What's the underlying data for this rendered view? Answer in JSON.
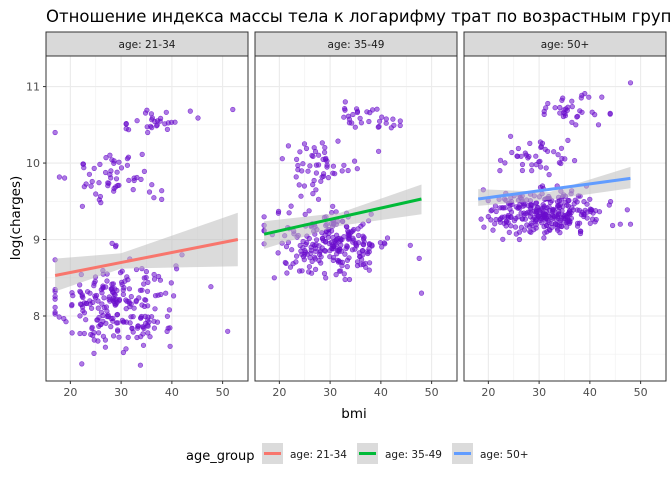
{
  "chart_data": {
    "type": "scatter",
    "title": "Отношение индекса массы тела к логарифму трат по возрастным группам",
    "xlabel": "bmi",
    "ylabel": "log(charges)",
    "xlim": [
      15.2,
      55.0
    ],
    "ylim": [
      7.15,
      11.4
    ],
    "x_ticks": [
      20,
      30,
      40,
      50
    ],
    "y_ticks": [
      8,
      9,
      10,
      11
    ],
    "grid": true,
    "legend_position": "bottom",
    "legend_title": "age_group",
    "point_color": "#6A0DCC",
    "ribbon_color": "#bdbdbd",
    "panels": [
      {
        "label": "age: 21-34",
        "series": "age: 21-34",
        "color": "#F8766D",
        "fit": {
          "x": [
            17,
            53
          ],
          "y": [
            8.53,
            9.0
          ]
        },
        "ribbon": {
          "x": [
            17,
            30,
            53
          ],
          "upper": [
            8.75,
            8.82,
            9.35
          ],
          "lower": [
            8.32,
            8.62,
            8.65
          ]
        },
        "clusters": [
          {
            "n": 230,
            "x_mean": 29,
            "x_sd": 5.8,
            "y_mean": 8.15,
            "y_sd": 0.3,
            "x_range": [
              17,
              53
            ],
            "y_range": [
              7.35,
              8.95
            ]
          },
          {
            "n": 55,
            "x_mean": 29,
            "x_sd": 4.5,
            "y_mean": 9.8,
            "y_sd": 0.16,
            "x_range": [
              17,
              38
            ],
            "y_range": [
              9.35,
              10.4
            ]
          },
          {
            "n": 28,
            "x_mean": 37,
            "x_sd": 3.2,
            "y_mean": 10.55,
            "y_sd": 0.12,
            "x_range": [
              31,
              48
            ],
            "y_range": [
              10.4,
              10.95
            ]
          }
        ],
        "extra_points": [
          [
            52,
            10.7
          ],
          [
            17,
            10.4
          ],
          [
            51,
            7.8
          ],
          [
            42,
            8.8
          ]
        ]
      },
      {
        "label": "age: 35-49",
        "series": "age: 35-49",
        "color": "#00BA38",
        "fit": {
          "x": [
            17,
            48
          ],
          "y": [
            9.07,
            9.53
          ]
        },
        "ribbon": {
          "x": [
            17,
            32,
            48
          ],
          "upper": [
            9.24,
            9.35,
            9.72
          ],
          "lower": [
            8.88,
            9.18,
            9.33
          ]
        },
        "clusters": [
          {
            "n": 240,
            "x_mean": 30.5,
            "x_sd": 5.8,
            "y_mean": 8.95,
            "y_sd": 0.22,
            "x_range": [
              17,
              48
            ],
            "y_range": [
              8.4,
              9.6
            ]
          },
          {
            "n": 50,
            "x_mean": 28,
            "x_sd": 4.0,
            "y_mean": 10.0,
            "y_sd": 0.15,
            "x_range": [
              18,
              40
            ],
            "y_range": [
              9.65,
              10.5
            ]
          },
          {
            "n": 30,
            "x_mean": 37,
            "x_sd": 3.2,
            "y_mean": 10.6,
            "y_sd": 0.07,
            "x_range": [
              30,
              48
            ],
            "y_range": [
              10.45,
              10.8
            ]
          }
        ],
        "extra_points": [
          [
            33,
            10.8
          ],
          [
            48,
            8.3
          ],
          [
            19,
            8.5
          ]
        ]
      },
      {
        "label": "age: 50+",
        "series": "age: 50+",
        "color": "#619CFF",
        "fit": {
          "x": [
            18,
            48
          ],
          "y": [
            9.53,
            9.8
          ]
        },
        "ribbon": {
          "x": [
            18,
            32,
            48
          ],
          "upper": [
            9.66,
            9.62,
            9.95
          ],
          "lower": [
            9.44,
            9.52,
            9.67
          ]
        },
        "clusters": [
          {
            "n": 290,
            "x_mean": 31.5,
            "x_sd": 5.6,
            "y_mean": 9.35,
            "y_sd": 0.14,
            "x_range": [
              18,
              48
            ],
            "y_range": [
              9.0,
              9.7
            ]
          },
          {
            "n": 40,
            "x_mean": 29,
            "x_sd": 3.6,
            "y_mean": 10.05,
            "y_sd": 0.13,
            "x_range": [
              20,
              37
            ],
            "y_range": [
              9.75,
              10.35
            ]
          },
          {
            "n": 35,
            "x_mean": 36,
            "x_sd": 3.2,
            "y_mean": 10.7,
            "y_sd": 0.09,
            "x_range": [
              31,
              44
            ],
            "y_range": [
              10.5,
              11.0
            ]
          }
        ],
        "extra_points": [
          [
            48,
            11.05
          ],
          [
            48,
            9.2
          ],
          [
            46,
            9.2
          ],
          [
            19,
            9.65
          ]
        ]
      }
    ]
  }
}
